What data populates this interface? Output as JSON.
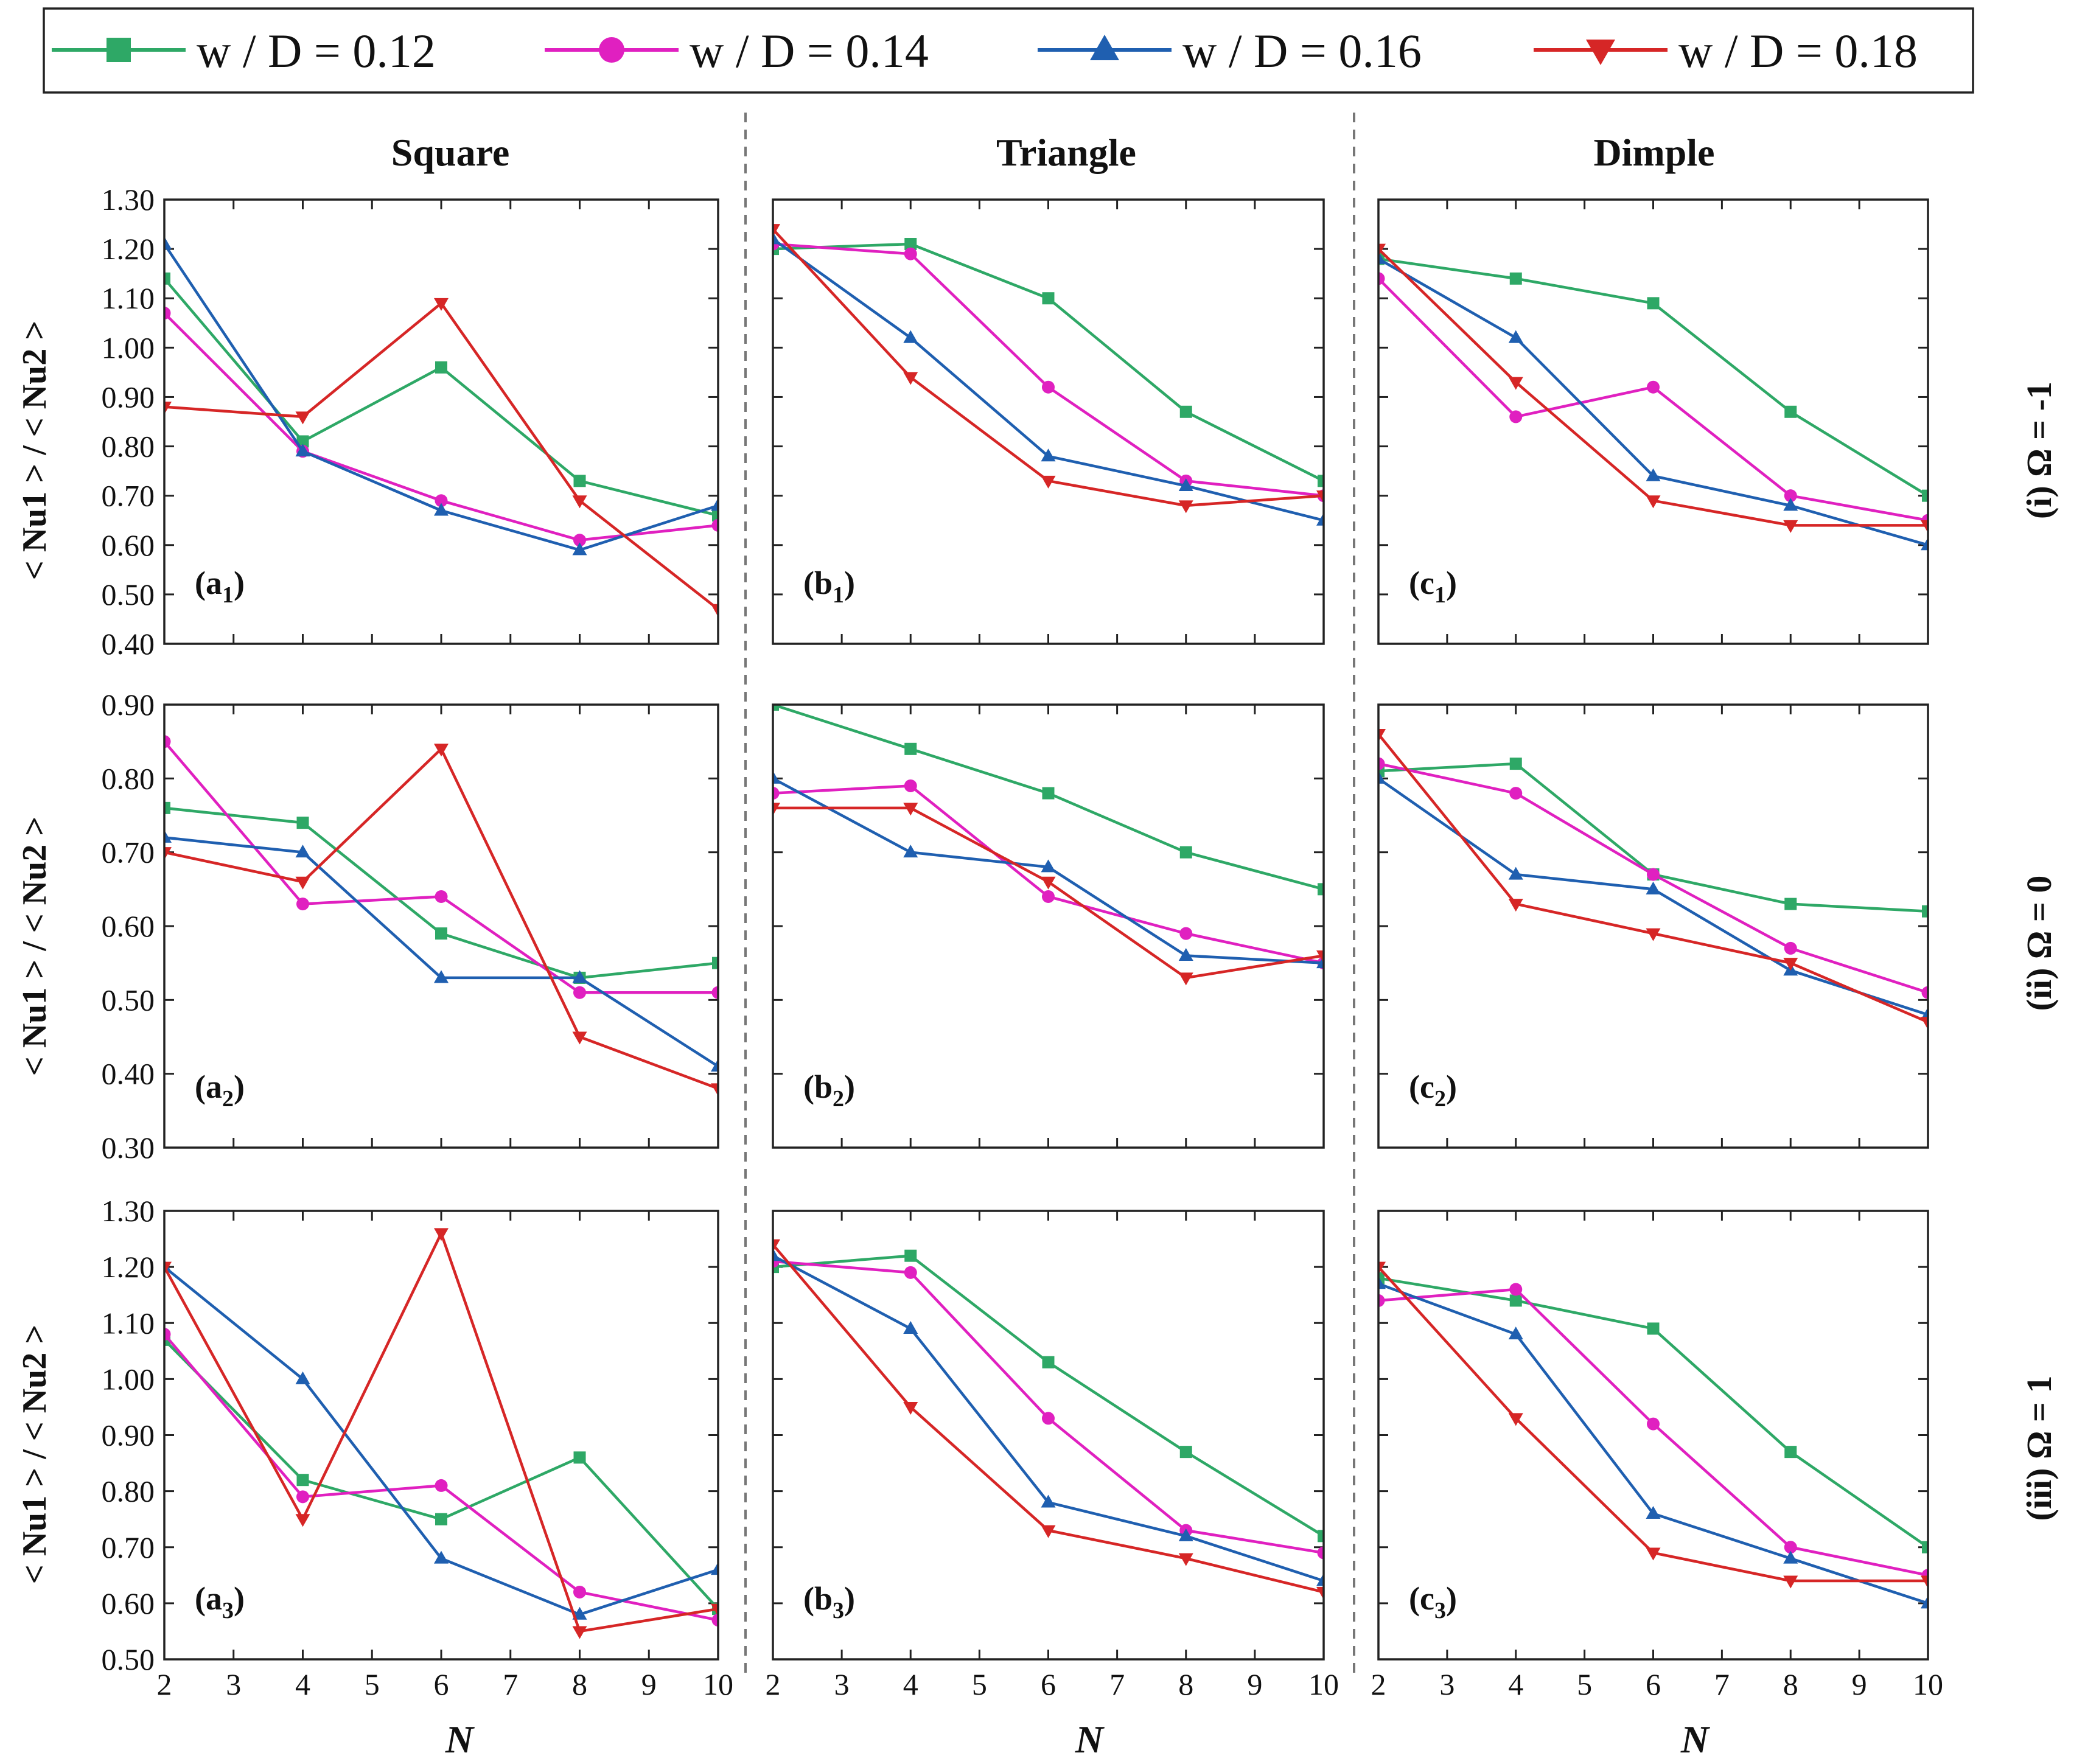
{
  "colors": {
    "s012": "#2ea866",
    "s014": "#e020c0",
    "s016": "#1f5fb0",
    "s018": "#d62626"
  },
  "legend": [
    {
      "label": "w / D = 0.12",
      "color": "#2ea866",
      "marker": "square"
    },
    {
      "label": "w / D = 0.14",
      "color": "#e020c0",
      "marker": "circle"
    },
    {
      "label": "w / D = 0.16",
      "color": "#1f5fb0",
      "marker": "triangle-up"
    },
    {
      "label": "w / D = 0.18",
      "color": "#d62626",
      "marker": "triangle-down"
    }
  ],
  "column_titles": [
    "Square",
    "Triangle",
    "Dimple"
  ],
  "row_labels": [
    "(i) Ω = -1",
    "(ii) Ω = 0",
    "(iii) Ω = 1"
  ],
  "ylabel": "< Nu1 > / < Nu2 >",
  "xlabel": "N",
  "x_ticks": [
    "2",
    "3",
    "4",
    "5",
    "6",
    "7",
    "8",
    "9",
    "10"
  ],
  "y_ticks": [
    [
      "1.30",
      "1.20",
      "1.10",
      "1.00",
      "0.90",
      "0.80",
      "0.70",
      "0.60",
      "0.50",
      "0.40"
    ],
    [
      "0.90",
      "0.80",
      "0.70",
      "0.60",
      "0.50",
      "0.40",
      "0.30"
    ],
    [
      "1.30",
      "1.20",
      "1.10",
      "1.00",
      "0.90",
      "0.80",
      "0.70",
      "0.60",
      "0.50"
    ]
  ],
  "chart_data": [
    {
      "type": "line",
      "panel": "(a1)",
      "column": "Square",
      "row": "(i) Ω = -1",
      "xlabel": "N",
      "ylabel": "< Nu1 > / < Nu2 >",
      "xlim": [
        2,
        10
      ],
      "ylim": [
        0.4,
        1.3
      ],
      "x": [
        2,
        4,
        6,
        8,
        10
      ],
      "series": [
        {
          "name": "w / D = 0.12",
          "values": [
            1.14,
            0.81,
            0.96,
            0.73,
            0.66
          ]
        },
        {
          "name": "w / D = 0.14",
          "values": [
            1.07,
            0.79,
            0.69,
            0.61,
            0.64
          ]
        },
        {
          "name": "w / D = 0.16",
          "values": [
            1.21,
            0.79,
            0.67,
            0.59,
            0.68
          ]
        },
        {
          "name": "w / D = 0.18",
          "values": [
            0.88,
            0.86,
            1.09,
            0.69,
            0.47
          ]
        }
      ]
    },
    {
      "type": "line",
      "panel": "(b1)",
      "column": "Triangle",
      "row": "(i) Ω = -1",
      "xlabel": "N",
      "ylabel": "< Nu1 > / < Nu2 >",
      "xlim": [
        2,
        10
      ],
      "ylim": [
        0.4,
        1.3
      ],
      "x": [
        2,
        4,
        6,
        8,
        10
      ],
      "series": [
        {
          "name": "w / D = 0.12",
          "values": [
            1.2,
            1.21,
            1.1,
            0.87,
            0.73
          ]
        },
        {
          "name": "w / D = 0.14",
          "values": [
            1.21,
            1.19,
            0.92,
            0.73,
            0.7
          ]
        },
        {
          "name": "w / D = 0.16",
          "values": [
            1.22,
            1.02,
            0.78,
            0.72,
            0.65
          ]
        },
        {
          "name": "w / D = 0.18",
          "values": [
            1.24,
            0.94,
            0.73,
            0.68,
            0.7
          ]
        }
      ]
    },
    {
      "type": "line",
      "panel": "(c1)",
      "column": "Dimple",
      "row": "(i) Ω = -1",
      "xlabel": "N",
      "ylabel": "< Nu1 > / < Nu2 >",
      "xlim": [
        2,
        10
      ],
      "ylim": [
        0.4,
        1.3
      ],
      "x": [
        2,
        4,
        6,
        8,
        10
      ],
      "series": [
        {
          "name": "w / D = 0.12",
          "values": [
            1.18,
            1.14,
            1.09,
            0.87,
            0.7
          ]
        },
        {
          "name": "w / D = 0.14",
          "values": [
            1.14,
            0.86,
            0.92,
            0.7,
            0.65
          ]
        },
        {
          "name": "w / D = 0.16",
          "values": [
            1.18,
            1.02,
            0.74,
            0.68,
            0.6
          ]
        },
        {
          "name": "w / D = 0.18",
          "values": [
            1.2,
            0.93,
            0.69,
            0.64,
            0.64
          ]
        }
      ]
    },
    {
      "type": "line",
      "panel": "(a2)",
      "column": "Square",
      "row": "(ii) Ω = 0",
      "xlabel": "N",
      "ylabel": "< Nu1 > / < Nu2 >",
      "xlim": [
        2,
        10
      ],
      "ylim": [
        0.3,
        0.9
      ],
      "x": [
        2,
        4,
        6,
        8,
        10
      ],
      "series": [
        {
          "name": "w / D = 0.12",
          "values": [
            0.76,
            0.74,
            0.59,
            0.53,
            0.55
          ]
        },
        {
          "name": "w / D = 0.14",
          "values": [
            0.85,
            0.63,
            0.64,
            0.51,
            0.51
          ]
        },
        {
          "name": "w / D = 0.16",
          "values": [
            0.72,
            0.7,
            0.53,
            0.53,
            0.41
          ]
        },
        {
          "name": "w / D = 0.18",
          "values": [
            0.7,
            0.66,
            0.84,
            0.45,
            0.38
          ]
        }
      ]
    },
    {
      "type": "line",
      "panel": "(b2)",
      "column": "Triangle",
      "row": "(ii) Ω = 0",
      "xlabel": "N",
      "ylabel": "< Nu1 > / < Nu2 >",
      "xlim": [
        2,
        10
      ],
      "ylim": [
        0.3,
        0.9
      ],
      "x": [
        2,
        4,
        6,
        8,
        10
      ],
      "series": [
        {
          "name": "w / D = 0.12",
          "values": [
            0.9,
            0.84,
            0.78,
            0.7,
            0.65
          ]
        },
        {
          "name": "w / D = 0.14",
          "values": [
            0.78,
            0.79,
            0.64,
            0.59,
            0.55
          ]
        },
        {
          "name": "w / D = 0.16",
          "values": [
            0.8,
            0.7,
            0.68,
            0.56,
            0.55
          ]
        },
        {
          "name": "w / D = 0.18",
          "values": [
            0.76,
            0.76,
            0.66,
            0.53,
            0.56
          ]
        }
      ]
    },
    {
      "type": "line",
      "panel": "(c2)",
      "column": "Dimple",
      "row": "(ii) Ω = 0",
      "xlabel": "N",
      "ylabel": "< Nu1 > / < Nu2 >",
      "xlim": [
        2,
        10
      ],
      "ylim": [
        0.3,
        0.9
      ],
      "x": [
        2,
        4,
        6,
        8,
        10
      ],
      "series": [
        {
          "name": "w / D = 0.12",
          "values": [
            0.81,
            0.82,
            0.67,
            0.63,
            0.62
          ]
        },
        {
          "name": "w / D = 0.14",
          "values": [
            0.82,
            0.78,
            0.67,
            0.57,
            0.51
          ]
        },
        {
          "name": "w / D = 0.16",
          "values": [
            0.8,
            0.67,
            0.65,
            0.54,
            0.48
          ]
        },
        {
          "name": "w / D = 0.18",
          "values": [
            0.86,
            0.63,
            0.59,
            0.55,
            0.47
          ]
        }
      ]
    },
    {
      "type": "line",
      "panel": "(a3)",
      "column": "Square",
      "row": "(iii) Ω = 1",
      "xlabel": "N",
      "ylabel": "< Nu1 > / < Nu2 >",
      "xlim": [
        2,
        10
      ],
      "ylim": [
        0.5,
        1.3
      ],
      "x": [
        2,
        4,
        6,
        8,
        10
      ],
      "series": [
        {
          "name": "w / D = 0.12",
          "values": [
            1.07,
            0.82,
            0.75,
            0.86,
            0.59
          ]
        },
        {
          "name": "w / D = 0.14",
          "values": [
            1.08,
            0.79,
            0.81,
            0.62,
            0.57
          ]
        },
        {
          "name": "w / D = 0.16",
          "values": [
            1.2,
            1.0,
            0.68,
            0.58,
            0.66
          ]
        },
        {
          "name": "w / D = 0.18",
          "values": [
            1.2,
            0.75,
            1.26,
            0.55,
            0.59
          ]
        }
      ]
    },
    {
      "type": "line",
      "panel": "(b3)",
      "column": "Triangle",
      "row": "(iii) Ω = 1",
      "xlabel": "N",
      "ylabel": "< Nu1 > / < Nu2 >",
      "xlim": [
        2,
        10
      ],
      "ylim": [
        0.5,
        1.3
      ],
      "x": [
        2,
        4,
        6,
        8,
        10
      ],
      "series": [
        {
          "name": "w / D = 0.12",
          "values": [
            1.2,
            1.22,
            1.03,
            0.87,
            0.72
          ]
        },
        {
          "name": "w / D = 0.14",
          "values": [
            1.21,
            1.19,
            0.93,
            0.73,
            0.69
          ]
        },
        {
          "name": "w / D = 0.16",
          "values": [
            1.22,
            1.09,
            0.78,
            0.72,
            0.64
          ]
        },
        {
          "name": "w / D = 0.18",
          "values": [
            1.24,
            0.95,
            0.73,
            0.68,
            0.62
          ]
        }
      ]
    },
    {
      "type": "line",
      "panel": "(c3)",
      "column": "Dimple",
      "row": "(iii) Ω = 1",
      "xlabel": "N",
      "ylabel": "< Nu1 > / < Nu2 >",
      "xlim": [
        2,
        10
      ],
      "ylim": [
        0.5,
        1.3
      ],
      "x": [
        2,
        4,
        6,
        8,
        10
      ],
      "series": [
        {
          "name": "w / D = 0.12",
          "values": [
            1.18,
            1.14,
            1.09,
            0.87,
            0.7
          ]
        },
        {
          "name": "w / D = 0.14",
          "values": [
            1.14,
            1.16,
            0.92,
            0.7,
            0.65
          ]
        },
        {
          "name": "w / D = 0.16",
          "values": [
            1.17,
            1.08,
            0.76,
            0.68,
            0.6
          ]
        },
        {
          "name": "w / D = 0.18",
          "values": [
            1.2,
            0.93,
            0.69,
            0.64,
            0.64
          ]
        }
      ]
    }
  ]
}
